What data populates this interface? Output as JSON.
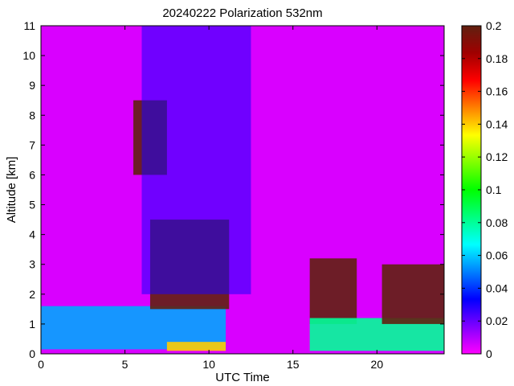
{
  "chart_data": {
    "type": "heatmap",
    "title": "20240222 Polarization 532nm",
    "xlabel": "UTC Time",
    "ylabel": "Altitude [km]",
    "xlim": [
      0,
      24
    ],
    "ylim": [
      0,
      11
    ],
    "x_ticks": [
      "0",
      "5",
      "10",
      "15",
      "20"
    ],
    "x_tick_values": [
      0,
      5,
      10,
      15,
      20
    ],
    "y_ticks": [
      "0",
      "1",
      "2",
      "3",
      "4",
      "5",
      "6",
      "7",
      "8",
      "9",
      "10",
      "11"
    ],
    "y_tick_values": [
      0,
      1,
      2,
      3,
      4,
      5,
      6,
      7,
      8,
      9,
      10,
      11
    ],
    "colorbar": {
      "range": [
        0,
        0.2
      ],
      "ticks": [
        "0",
        "0.02",
        "0.04",
        "0.06",
        "0.08",
        "0.1",
        "0.12",
        "0.14",
        "0.16",
        "0.18",
        "0.2"
      ],
      "tick_values": [
        0,
        0.02,
        0.04,
        0.06,
        0.08,
        0.1,
        0.12,
        0.14,
        0.16,
        0.18,
        0.2
      ],
      "colormap": [
        "#ff00ff",
        "#8000ff",
        "#0000ff",
        "#0080ff",
        "#00ffff",
        "#00ff80",
        "#00ff00",
        "#80ff00",
        "#ffff00",
        "#ff8000",
        "#ff0000",
        "#a00000",
        "#602010"
      ]
    },
    "background_value": 0.005,
    "features": [
      {
        "name": "boundary-layer",
        "x": [
          0,
          11.0
        ],
        "y": [
          0.15,
          1.6
        ],
        "value": 0.055
      },
      {
        "name": "surface-layer",
        "x": [
          7.5,
          11.0
        ],
        "y": [
          0.1,
          0.4
        ],
        "value": 0.14
      },
      {
        "name": "high-ice-cloud",
        "x": [
          5.5,
          7.5
        ],
        "y": [
          6.0,
          8.5
        ],
        "value": 0.2
      },
      {
        "name": "mid-cloud",
        "x": [
          6.5,
          11.2
        ],
        "y": [
          1.5,
          4.5
        ],
        "value": 0.2
      },
      {
        "name": "cirrus-speckle",
        "x": [
          6.0,
          12.5
        ],
        "y": [
          2.0,
          11.0
        ],
        "value": 0.03
      },
      {
        "name": "afternoon-cloud",
        "x": [
          16.0,
          18.8
        ],
        "y": [
          1.0,
          3.2
        ],
        "value": 0.2
      },
      {
        "name": "afternoon-boundary-layer",
        "x": [
          16.0,
          24.0
        ],
        "y": [
          0.1,
          1.2
        ],
        "value": 0.08
      },
      {
        "name": "evening-cloud",
        "x": [
          20.3,
          24.0
        ],
        "y": [
          1.0,
          3.0
        ],
        "value": 0.2
      }
    ]
  }
}
